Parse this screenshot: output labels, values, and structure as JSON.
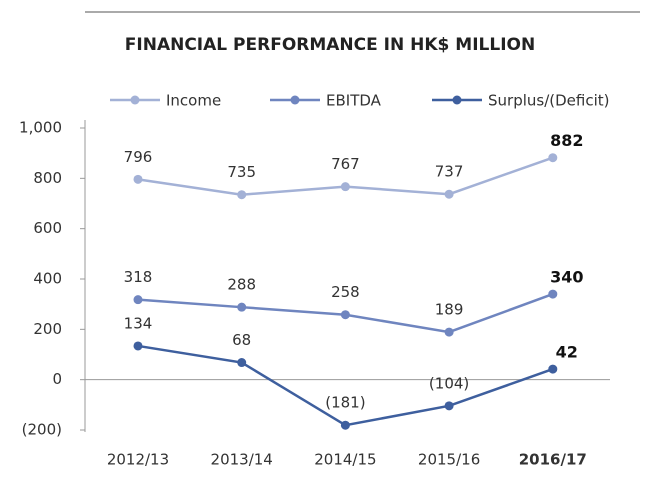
{
  "chart_data": {
    "type": "line",
    "title": "FINANCIAL PERFORMANCE IN HK$ MILLION",
    "categories": [
      "2012/13",
      "2013/14",
      "2014/15",
      "2015/16",
      "2016/17"
    ],
    "series": [
      {
        "name": "Income",
        "color": "#a3b1d6",
        "values": [
          796,
          735,
          767,
          737,
          882
        ]
      },
      {
        "name": "EBITDA",
        "color": "#6f85bf",
        "values": [
          318,
          288,
          258,
          189,
          340
        ]
      },
      {
        "name": "Surplus/(Deficit)",
        "color": "#3e5f9e",
        "values": [
          134,
          68,
          -181,
          -104,
          42
        ],
        "value_labels": [
          "134",
          "68",
          "(181)",
          "(104)",
          "42"
        ]
      }
    ],
    "ylim": [
      -200,
      1000
    ],
    "yticks": [
      {
        "value": -200,
        "label": "(200)"
      },
      0,
      200,
      400,
      600,
      800,
      {
        "value": 1000,
        "label": "1,000"
      }
    ],
    "grid": false
  }
}
